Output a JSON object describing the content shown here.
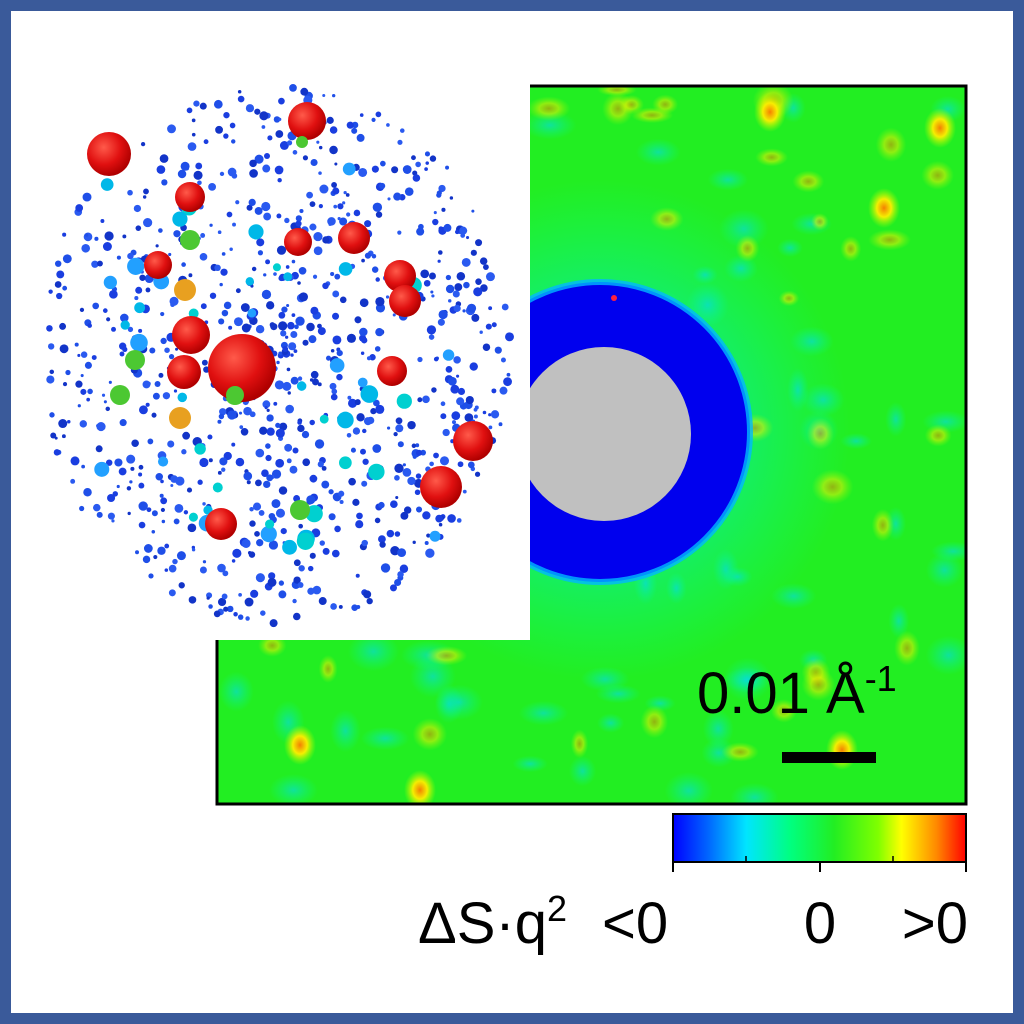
{
  "scale_bar": {
    "value": "0.01 Å",
    "exponent": "-1"
  },
  "colorbar": {
    "quantity": "ΔS·q",
    "quantity_power": "2",
    "low_label": "<0",
    "mid_label": "0",
    "high_label": ">0",
    "stops": [
      "#0000ff",
      "#0066ff",
      "#00e5ff",
      "#00ff80",
      "#22ee22",
      "#7fff00",
      "#ffff00",
      "#ff8800",
      "#ff0000"
    ]
  },
  "colors": {
    "border": "#3a5a9a",
    "background_map": "#22ee22",
    "ring": "#0000ee",
    "beamstop": "#c0c0c0",
    "atom_red": "#e01010",
    "atom_blue": "#1a3ee0"
  }
}
